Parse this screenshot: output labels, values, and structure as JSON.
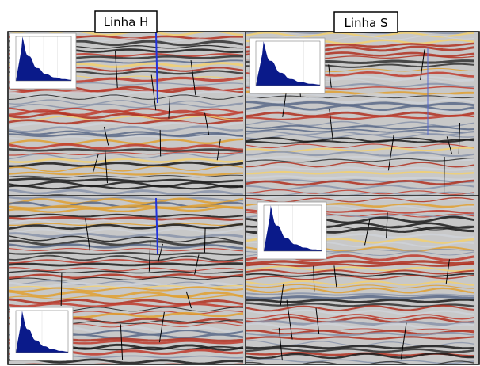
{
  "panels": {
    "left_title": "Linha H",
    "right_title": "Linha S"
  }
}
